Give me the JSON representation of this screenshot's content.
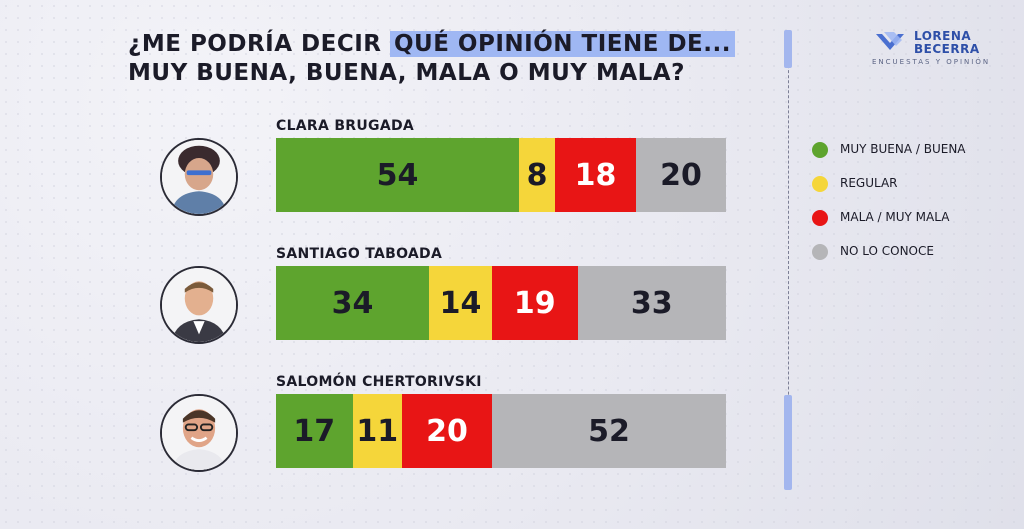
{
  "title": {
    "line1_prefix": "¿ME PODRÍA DECIR ",
    "line1_highlight": "QUÉ OPINIÓN TIENE DE...",
    "line2": "MUY BUENA, BUENA, MALA O MUY MALA?"
  },
  "logo": {
    "line1": "LORENA",
    "line2": "BECERRA",
    "sub": "ENCUESTAS Y OPINIÓN"
  },
  "colors": {
    "green": "#5ea42e",
    "yellow": "#f5d63a",
    "red": "#e81515",
    "gray": "#b5b5b8",
    "highlight": "#9fb7f3",
    "accent": "#a3b6ee"
  },
  "chart_data": {
    "type": "bar",
    "stacked": true,
    "orientation": "horizontal",
    "categories": [
      "CLARA BRUGADA",
      "SANTIAGO TABOADA",
      "SALOMÓN CHERTORIVSKI"
    ],
    "series": [
      {
        "name": "MUY BUENA / BUENA",
        "color": "#5ea42e",
        "values": [
          54,
          34,
          17
        ]
      },
      {
        "name": "REGULAR",
        "color": "#f5d63a",
        "values": [
          8,
          14,
          11
        ]
      },
      {
        "name": "MALA / MUY MALA",
        "color": "#e81515",
        "values": [
          18,
          19,
          20
        ]
      },
      {
        "name": "NO LO CONOCE",
        "color": "#b5b5b8",
        "values": [
          20,
          33,
          52
        ]
      }
    ],
    "xlim": [
      0,
      100
    ],
    "legend": "right"
  }
}
